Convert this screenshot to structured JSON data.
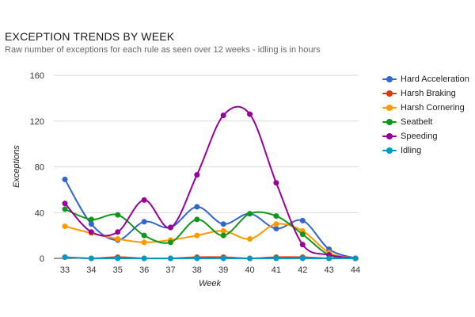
{
  "chart_data": {
    "type": "line",
    "title": "EXCEPTION TRENDS BY WEEK",
    "subtitle": "Raw number of exceptions for each rule as seen over 12 weeks - idling is in hours",
    "xlabel": "Week",
    "ylabel": "Exceptions",
    "x": [
      "33",
      "34",
      "35",
      "36",
      "37",
      "38",
      "39",
      "40",
      "41",
      "42",
      "43",
      "44"
    ],
    "yticks": [
      "0",
      "40",
      "80",
      "120",
      "160"
    ],
    "ylim": [
      0,
      160
    ],
    "grid": true,
    "smooth": true,
    "legend_position": "right",
    "series": [
      {
        "name": "Hard Acceleration",
        "color": "#3366cc",
        "values": [
          69,
          30,
          16,
          32,
          27,
          45,
          30,
          39,
          26,
          33,
          8,
          0
        ]
      },
      {
        "name": "Harsh Braking",
        "color": "#dc3912",
        "values": [
          1,
          0,
          1,
          0,
          0,
          1,
          1,
          0,
          1,
          1,
          0,
          0
        ]
      },
      {
        "name": "Harsh Cornering",
        "color": "#ff9900",
        "values": [
          28,
          22,
          17,
          14,
          16,
          20,
          24,
          17,
          30,
          24,
          5,
          0
        ]
      },
      {
        "name": "Seatbelt",
        "color": "#109618",
        "values": [
          43,
          34,
          38,
          20,
          14,
          34,
          20,
          39,
          37,
          21,
          3,
          0
        ]
      },
      {
        "name": "Speeding",
        "color": "#990099",
        "values": [
          48,
          23,
          23,
          51,
          27,
          73,
          125,
          126,
          66,
          12,
          3,
          0
        ]
      },
      {
        "name": "Idling",
        "color": "#0099c6",
        "values": [
          1,
          0,
          0,
          0,
          0,
          0,
          0,
          0,
          0,
          0,
          0,
          0
        ]
      }
    ]
  }
}
